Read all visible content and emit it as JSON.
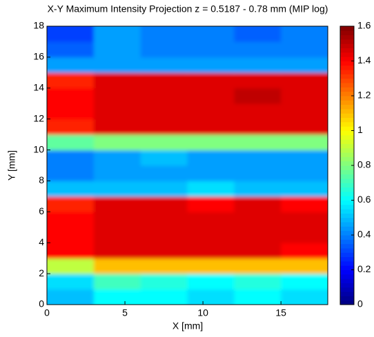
{
  "chart_data": {
    "type": "heatmap",
    "title": "X-Y Maximum Intensity Projection z = 0.5187 - 0.78 mm (MIP log)",
    "xlabel": "X [mm]",
    "ylabel": "Y [mm]",
    "x": [
      1.5,
      4.5,
      7.5,
      10.5,
      13.5,
      16.5
    ],
    "y": [
      0.5,
      1.5,
      2.5,
      3.5,
      4.5,
      5.5,
      6.5,
      7.5,
      8.5,
      9.5,
      10.5,
      11.5,
      12.5,
      13.5,
      14.5,
      15.5,
      16.5,
      17.5
    ],
    "z": [
      [
        0.5,
        0.6,
        0.6,
        0.55,
        0.6,
        0.55
      ],
      [
        0.55,
        0.7,
        0.65,
        0.6,
        0.65,
        0.6
      ],
      [
        0.9,
        1.1,
        1.1,
        1.1,
        1.1,
        1.1
      ],
      [
        1.4,
        1.45,
        1.45,
        1.45,
        1.45,
        1.4
      ],
      [
        1.4,
        1.45,
        1.45,
        1.45,
        1.45,
        1.45
      ],
      [
        1.4,
        1.45,
        1.45,
        1.45,
        1.45,
        1.45
      ],
      [
        1.35,
        1.45,
        1.45,
        1.4,
        1.45,
        1.4
      ],
      [
        0.5,
        0.5,
        0.5,
        0.55,
        0.5,
        0.5
      ],
      [
        0.4,
        0.45,
        0.45,
        0.45,
        0.45,
        0.45
      ],
      [
        0.4,
        0.45,
        0.5,
        0.45,
        0.45,
        0.45
      ],
      [
        0.75,
        0.8,
        0.8,
        0.8,
        0.8,
        0.8
      ],
      [
        1.35,
        1.45,
        1.45,
        1.45,
        1.45,
        1.45
      ],
      [
        1.4,
        1.45,
        1.45,
        1.45,
        1.45,
        1.45
      ],
      [
        1.4,
        1.45,
        1.45,
        1.45,
        1.5,
        1.45
      ],
      [
        1.35,
        1.45,
        1.45,
        1.45,
        1.45,
        1.45
      ],
      [
        0.45,
        0.45,
        0.45,
        0.45,
        0.45,
        0.45
      ],
      [
        0.35,
        0.45,
        0.4,
        0.4,
        0.4,
        0.4
      ],
      [
        0.3,
        0.45,
        0.4,
        0.4,
        0.35,
        0.4
      ]
    ],
    "colormap": "jet",
    "xlim": [
      0,
      18
    ],
    "xticks": [
      0,
      5,
      10,
      15
    ],
    "ylim": [
      0,
      18
    ],
    "yticks": [
      0,
      2,
      4,
      6,
      8,
      10,
      12,
      14,
      16,
      18
    ],
    "clim": [
      0,
      1.6
    ],
    "cticks": [
      0,
      0.2,
      0.4,
      0.6,
      0.8,
      1,
      1.2,
      1.4,
      1.6
    ]
  }
}
